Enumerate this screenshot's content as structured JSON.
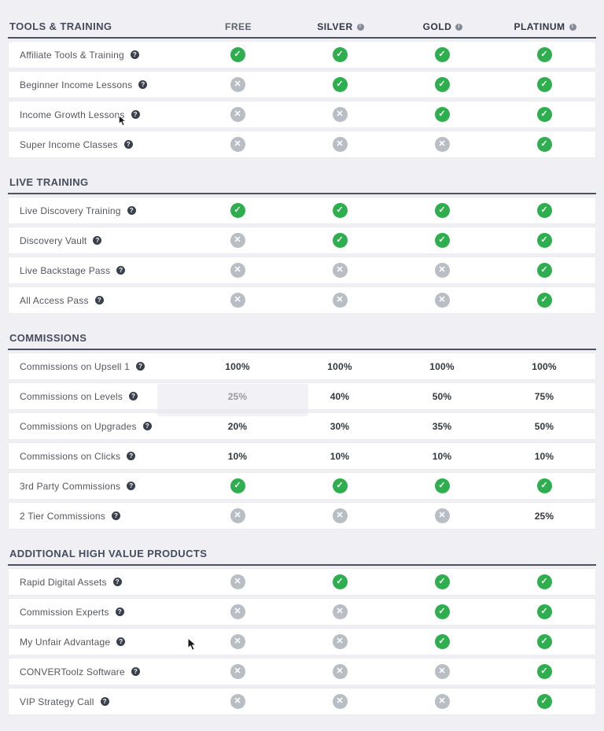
{
  "columns": [
    {
      "label": "FREE",
      "info": false
    },
    {
      "label": "SILVER",
      "info": true
    },
    {
      "label": "GOLD",
      "info": true
    },
    {
      "label": "PLATINUM",
      "info": true
    }
  ],
  "sections": [
    {
      "title": "TOOLS & TRAINING",
      "rows": [
        {
          "label": "Affiliate Tools & Training",
          "values": [
            "check",
            "check",
            "check",
            "check"
          ]
        },
        {
          "label": "Beginner Income Lessons",
          "values": [
            "cross",
            "check",
            "check",
            "check"
          ]
        },
        {
          "label": "Income Growth Lessons",
          "values": [
            "cross",
            "cross",
            "check",
            "check"
          ]
        },
        {
          "label": "Super Income Classes",
          "values": [
            "cross",
            "cross",
            "cross",
            "check"
          ]
        }
      ]
    },
    {
      "title": "LIVE TRAINING",
      "rows": [
        {
          "label": "Live Discovery Training",
          "values": [
            "check",
            "check",
            "check",
            "check"
          ]
        },
        {
          "label": "Discovery Vault",
          "values": [
            "cross",
            "check",
            "check",
            "check"
          ]
        },
        {
          "label": "Live Backstage Pass",
          "values": [
            "cross",
            "cross",
            "cross",
            "check"
          ]
        },
        {
          "label": "All Access Pass",
          "values": [
            "cross",
            "cross",
            "cross",
            "check"
          ]
        }
      ]
    },
    {
      "title": "COMMISSIONS",
      "rows": [
        {
          "label": "Commissions on Upsell 1",
          "values": [
            "100%",
            "100%",
            "100%",
            "100%"
          ]
        },
        {
          "label": "Commissions on Levels",
          "values": [
            "25%",
            "40%",
            "50%",
            "75%"
          ]
        },
        {
          "label": "Commissions on Upgrades",
          "values": [
            "20%",
            "30%",
            "35%",
            "50%"
          ]
        },
        {
          "label": "Commissions on Clicks",
          "values": [
            "10%",
            "10%",
            "10%",
            "10%"
          ]
        },
        {
          "label": "3rd Party Commissions",
          "values": [
            "check",
            "check",
            "check",
            "check"
          ]
        },
        {
          "label": "2 Tier Commissions",
          "values": [
            "cross",
            "cross",
            "cross",
            "25%"
          ]
        }
      ]
    },
    {
      "title": "ADDITIONAL HIGH VALUE PRODUCTS",
      "rows": [
        {
          "label": "Rapid Digital Assets",
          "values": [
            "cross",
            "check",
            "check",
            "check"
          ]
        },
        {
          "label": "Commission Experts",
          "values": [
            "cross",
            "cross",
            "check",
            "check"
          ]
        },
        {
          "label": "My Unfair Advantage",
          "values": [
            "cross",
            "cross",
            "check",
            "check"
          ]
        },
        {
          "label": "CONVERToolz Software",
          "values": [
            "cross",
            "cross",
            "cross",
            "check"
          ]
        },
        {
          "label": "VIP Strategy Call",
          "values": [
            "cross",
            "cross",
            "cross",
            "check"
          ]
        }
      ]
    }
  ],
  "icons": {
    "check": "✓",
    "cross": "✕",
    "help": "?",
    "info": "i"
  },
  "colors": {
    "check_green": "#2fae4f",
    "cross_gray": "#b9bdc4",
    "section_title": "#454c5b",
    "header_bold": "#2f3542",
    "page_background": "#f0f0f4"
  }
}
